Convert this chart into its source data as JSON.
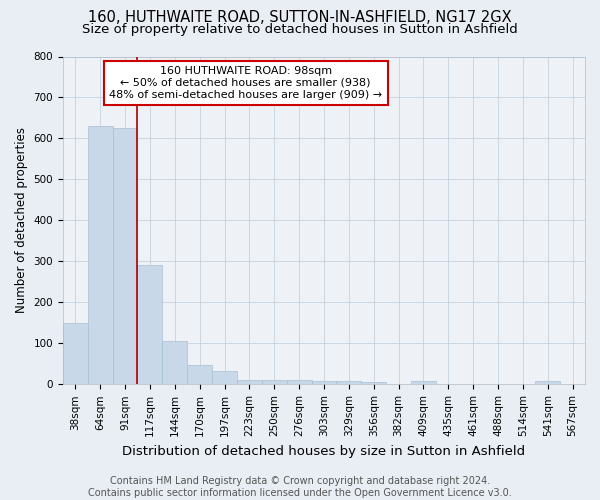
{
  "title": "160, HUTHWAITE ROAD, SUTTON-IN-ASHFIELD, NG17 2GX",
  "subtitle": "Size of property relative to detached houses in Sutton in Ashfield",
  "xlabel": "Distribution of detached houses by size in Sutton in Ashfield",
  "ylabel": "Number of detached properties",
  "categories": [
    "38sqm",
    "64sqm",
    "91sqm",
    "117sqm",
    "144sqm",
    "170sqm",
    "197sqm",
    "223sqm",
    "250sqm",
    "276sqm",
    "303sqm",
    "329sqm",
    "356sqm",
    "382sqm",
    "409sqm",
    "435sqm",
    "461sqm",
    "488sqm",
    "514sqm",
    "541sqm",
    "567sqm"
  ],
  "values": [
    150,
    630,
    625,
    290,
    105,
    47,
    32,
    10,
    10,
    10,
    8,
    8,
    5,
    0,
    7,
    0,
    0,
    0,
    0,
    8,
    0
  ],
  "bar_color": "#c8d8e8",
  "bar_edge_color": "#a8c0d4",
  "vline_x": 2.5,
  "vline_color": "#aa0000",
  "annotation_text": "160 HUTHWAITE ROAD: 98sqm\n← 50% of detached houses are smaller (938)\n48% of semi-detached houses are larger (909) →",
  "annotation_box_color": "#ffffff",
  "annotation_box_edge_color": "#cc0000",
  "ylim": [
    0,
    800
  ],
  "yticks": [
    0,
    100,
    200,
    300,
    400,
    500,
    600,
    700,
    800
  ],
  "footnote": "Contains HM Land Registry data © Crown copyright and database right 2024.\nContains public sector information licensed under the Open Government Licence v3.0.",
  "background_color": "#e8eef4",
  "plot_bg_color": "#eef2f7",
  "title_fontsize": 10.5,
  "subtitle_fontsize": 9.5,
  "xlabel_fontsize": 9.5,
  "ylabel_fontsize": 8.5,
  "tick_fontsize": 7.5,
  "footnote_fontsize": 7,
  "annotation_fontsize": 8
}
